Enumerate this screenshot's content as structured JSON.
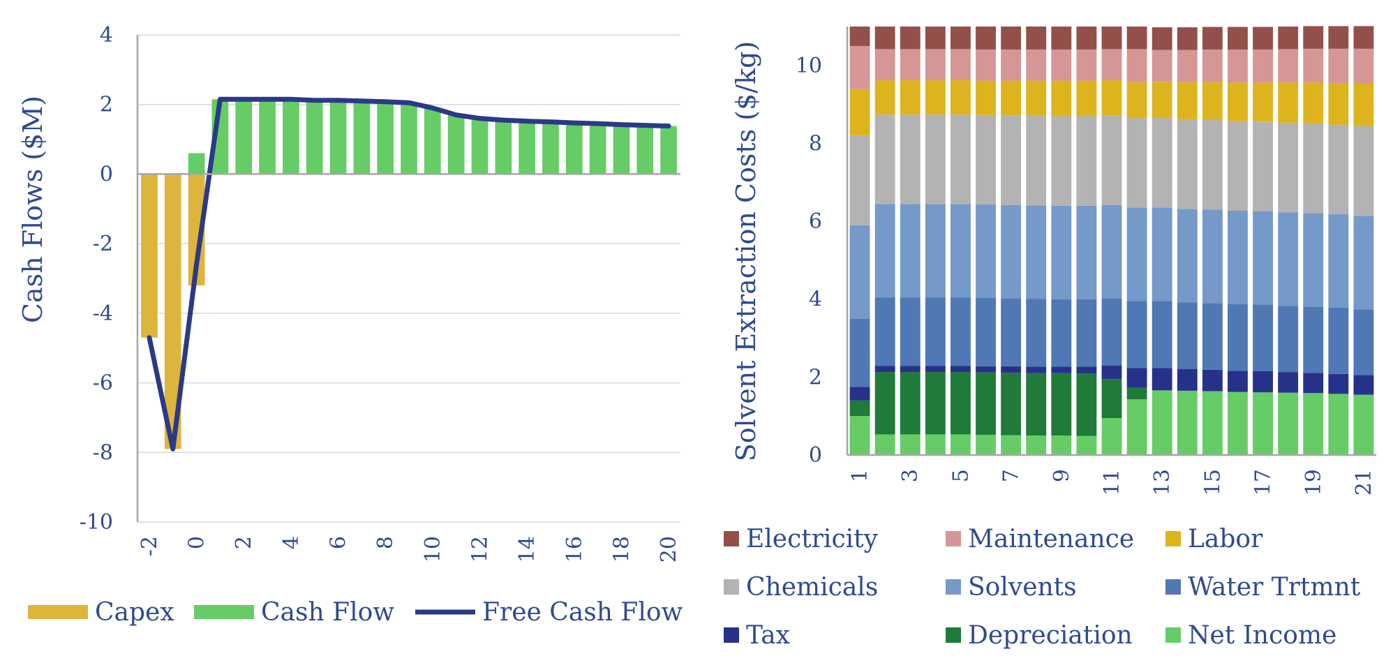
{
  "chart_data": [
    {
      "type": "bar",
      "title": "",
      "xlabel": "",
      "ylabel": "Cash Flows ($M)",
      "ylim": [
        -10,
        4
      ],
      "y_ticks": [
        "4",
        "2",
        "0",
        "-2",
        "-4",
        "-6",
        "-8",
        "-10"
      ],
      "x": [
        -2,
        -1,
        0,
        1,
        2,
        3,
        4,
        5,
        6,
        7,
        8,
        9,
        10,
        11,
        12,
        13,
        14,
        15,
        16,
        17,
        18,
        19,
        20
      ],
      "x_tick_labels": [
        "-2",
        "0",
        "2",
        "4",
        "6",
        "8",
        "10",
        "12",
        "14",
        "16",
        "18",
        "20"
      ],
      "grid": true,
      "legend_position": "bottom",
      "series": [
        {
          "name": "Capex",
          "type": "bar",
          "color": "#DDB43C",
          "values": [
            -4.7,
            -7.9,
            -3.2,
            0,
            0,
            0,
            0,
            0,
            0,
            0,
            0,
            0,
            0,
            0,
            0,
            0,
            0,
            0,
            0,
            0,
            0,
            0,
            0
          ]
        },
        {
          "name": "Cash Flow",
          "type": "bar",
          "color": "#66CC66",
          "values": [
            0,
            0,
            0.6,
            2.15,
            2.15,
            2.15,
            2.15,
            2.12,
            2.12,
            2.1,
            2.08,
            2.05,
            1.9,
            1.7,
            1.6,
            1.55,
            1.52,
            1.5,
            1.47,
            1.45,
            1.42,
            1.4,
            1.38
          ]
        },
        {
          "name": "Free Cash Flow",
          "type": "line",
          "color": "#2B3A86",
          "values": [
            -4.7,
            -7.9,
            -2.6,
            2.15,
            2.15,
            2.15,
            2.15,
            2.12,
            2.12,
            2.1,
            2.08,
            2.05,
            1.9,
            1.7,
            1.6,
            1.55,
            1.52,
            1.5,
            1.47,
            1.45,
            1.42,
            1.4,
            1.38
          ]
        }
      ]
    },
    {
      "type": "bar",
      "stacked": true,
      "title": "",
      "xlabel": "",
      "ylabel": "Solvent Extraction Costs ($/kg)",
      "ylim": [
        0,
        11
      ],
      "y_ticks": [
        "0",
        "2",
        "4",
        "6",
        "8",
        "10"
      ],
      "categories": [
        "1",
        "2",
        "3",
        "4",
        "5",
        "6",
        "7",
        "8",
        "9",
        "10",
        "11",
        "12",
        "13",
        "14",
        "15",
        "16",
        "17",
        "18",
        "19",
        "20",
        "21"
      ],
      "x_tick_labels": [
        "1",
        "3",
        "5",
        "7",
        "9",
        "11",
        "13",
        "15",
        "17",
        "19",
        "21"
      ],
      "legend_position": "bottom",
      "series": [
        {
          "name": "Net Income",
          "color": "#66CC66",
          "values": [
            1.0,
            0.53,
            0.53,
            0.53,
            0.53,
            0.52,
            0.51,
            0.5,
            0.5,
            0.49,
            0.95,
            1.43,
            1.66,
            1.65,
            1.64,
            1.62,
            1.61,
            1.6,
            1.59,
            1.57,
            1.55
          ]
        },
        {
          "name": "Depreciation",
          "color": "#207A3A",
          "values": [
            0.4,
            1.6,
            1.6,
            1.6,
            1.6,
            1.6,
            1.6,
            1.6,
            1.6,
            1.6,
            1.0,
            0.3,
            0,
            0,
            0,
            0,
            0,
            0,
            0,
            0,
            0
          ]
        },
        {
          "name": "Tax",
          "color": "#26328A",
          "values": [
            0.35,
            0.16,
            0.16,
            0.16,
            0.16,
            0.16,
            0.17,
            0.17,
            0.17,
            0.18,
            0.35,
            0.5,
            0.57,
            0.56,
            0.55,
            0.54,
            0.54,
            0.53,
            0.52,
            0.51,
            0.5
          ]
        },
        {
          "name": "Water Trtmnt",
          "color": "#4F78B4",
          "values": [
            1.75,
            1.75,
            1.75,
            1.75,
            1.75,
            1.75,
            1.74,
            1.74,
            1.73,
            1.73,
            1.72,
            1.72,
            1.72,
            1.71,
            1.71,
            1.71,
            1.71,
            1.7,
            1.7,
            1.7,
            1.69
          ]
        },
        {
          "name": "Solvents",
          "color": "#7599C8",
          "values": [
            2.4,
            2.4,
            2.4,
            2.4,
            2.4,
            2.4,
            2.4,
            2.4,
            2.4,
            2.4,
            2.4,
            2.4,
            2.4,
            2.4,
            2.4,
            2.4,
            2.4,
            2.4,
            2.4,
            2.4,
            2.4
          ]
        },
        {
          "name": "Chemicals",
          "color": "#B3B3B3",
          "values": [
            2.3,
            2.3,
            2.3,
            2.3,
            2.3,
            2.3,
            2.3,
            2.3,
            2.3,
            2.3,
            2.3,
            2.3,
            2.3,
            2.3,
            2.3,
            2.3,
            2.3,
            2.3,
            2.3,
            2.3,
            2.3
          ]
        },
        {
          "name": "Labor",
          "color": "#DEB41E",
          "values": [
            1.2,
            0.88,
            0.88,
            0.88,
            0.88,
            0.88,
            0.89,
            0.9,
            0.91,
            0.91,
            0.9,
            0.92,
            0.93,
            0.95,
            0.97,
            0.99,
            1.0,
            1.03,
            1.05,
            1.07,
            1.1
          ]
        },
        {
          "name": "Maintenance",
          "color": "#D49796",
          "values": [
            1.1,
            0.8,
            0.8,
            0.8,
            0.8,
            0.8,
            0.8,
            0.8,
            0.8,
            0.8,
            0.8,
            0.85,
            0.82,
            0.83,
            0.84,
            0.85,
            0.85,
            0.86,
            0.87,
            0.88,
            0.89
          ]
        },
        {
          "name": "Electricity",
          "color": "#93504B",
          "values": [
            0.5,
            0.58,
            0.58,
            0.58,
            0.58,
            0.59,
            0.59,
            0.59,
            0.59,
            0.59,
            0.58,
            0.58,
            0.58,
            0.58,
            0.58,
            0.58,
            0.58,
            0.58,
            0.58,
            0.58,
            0.58
          ]
        }
      ],
      "legend_order": [
        "Electricity",
        "Maintenance",
        "Labor",
        "Chemicals",
        "Solvents",
        "Water Trtmnt",
        "Tax",
        "Depreciation",
        "Net Income"
      ]
    }
  ]
}
